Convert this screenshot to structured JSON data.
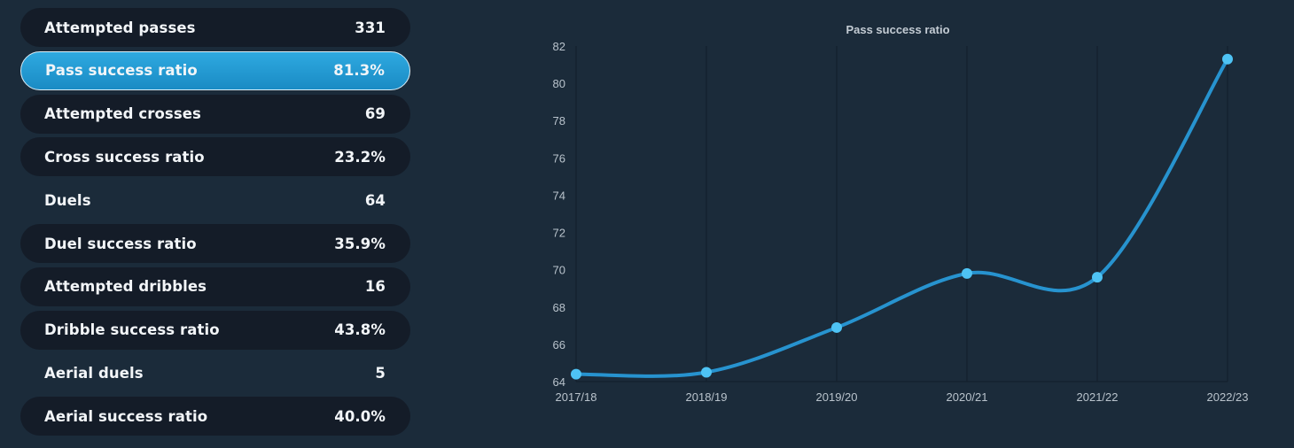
{
  "stats": [
    {
      "label": "Attempted passes",
      "value": "331",
      "style": "pill",
      "active": false
    },
    {
      "label": "Pass success ratio",
      "value": "81.3%",
      "style": "pill",
      "active": true
    },
    {
      "label": "Attempted crosses",
      "value": "69",
      "style": "pill",
      "active": false
    },
    {
      "label": "Cross success ratio",
      "value": "23.2%",
      "style": "pill",
      "active": false
    },
    {
      "label": "Duels",
      "value": "64",
      "style": "plain",
      "active": false
    },
    {
      "label": "Duel success ratio",
      "value": "35.9%",
      "style": "pill",
      "active": false
    },
    {
      "label": "Attempted dribbles",
      "value": "16",
      "style": "pill",
      "active": false
    },
    {
      "label": "Dribble success ratio",
      "value": "43.8%",
      "style": "pill",
      "active": false
    },
    {
      "label": "Aerial duels",
      "value": "5",
      "style": "plain",
      "active": false
    },
    {
      "label": "Aerial success ratio",
      "value": "40.0%",
      "style": "pill",
      "active": false
    }
  ],
  "colors": {
    "background": "#1b2b3a",
    "pill": "#141c28",
    "active_accent": "#1e98d2",
    "line": "#2793cf",
    "marker": "#4ec3f4",
    "grid": "#15222f"
  },
  "chart_data": {
    "type": "line",
    "title": "Pass success ratio",
    "xlabel": "",
    "ylabel": "",
    "categories": [
      "2017/18",
      "2018/19",
      "2019/20",
      "2020/21",
      "2021/22",
      "2022/23"
    ],
    "series": [
      {
        "values": [
          64.4,
          64.5,
          66.9,
          69.8,
          69.6,
          81.3
        ]
      }
    ],
    "ylim": [
      64,
      82
    ],
    "yticks": [
      64,
      66,
      68,
      70,
      72,
      74,
      76,
      78,
      80,
      82
    ],
    "grid": {
      "vertical": true,
      "horizontal": false
    },
    "legend": "none",
    "smooth": true
  }
}
